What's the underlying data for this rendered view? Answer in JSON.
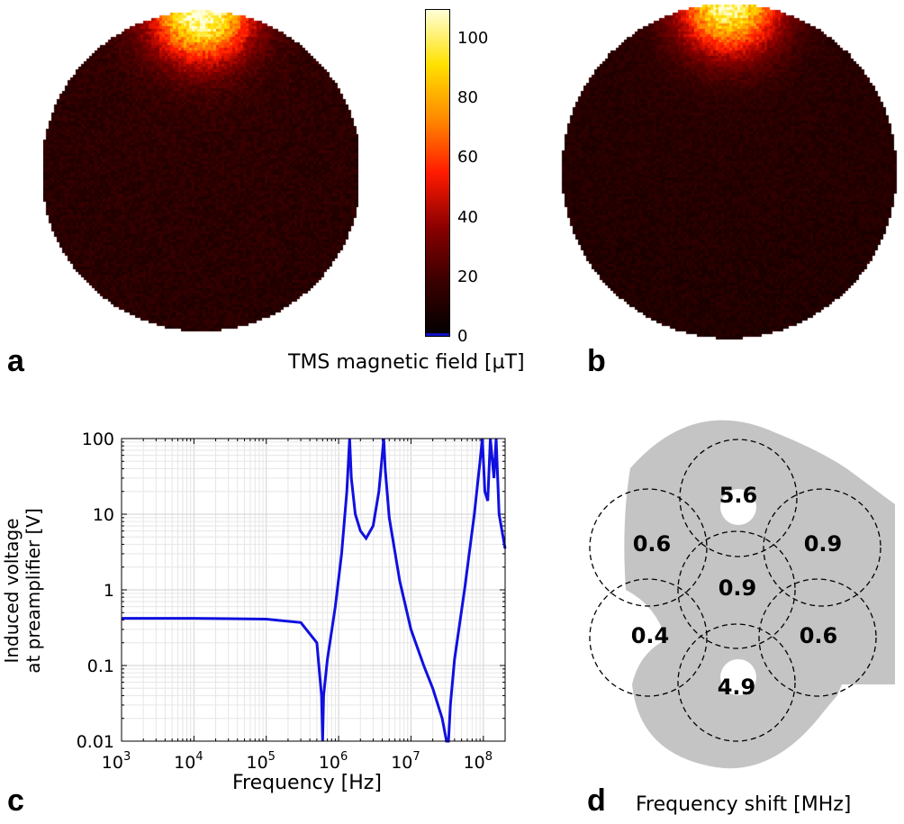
{
  "panels": {
    "a": "a",
    "b": "b",
    "c": "c",
    "d": "d"
  },
  "colorbar": {
    "caption": "TMS magnetic field [µT]",
    "ticks": [
      "100",
      "80",
      "60",
      "40",
      "20",
      "0"
    ],
    "tick_values": [
      100,
      80,
      60,
      40,
      20,
      0
    ],
    "max": 110,
    "colors": [
      "#000000",
      "#3a0000",
      "#8a0000",
      "#ff1a00",
      "#ff8a00",
      "#ffe100",
      "#ffffd8"
    ]
  },
  "heatmaps": {
    "a": {
      "hot_edge": "top",
      "background_field_uT": 12,
      "peak_field_uT": 108
    },
    "b": {
      "hot_edge": "top",
      "background_field_uT": 10,
      "peak_field_uT": 100
    }
  },
  "chart_data": {
    "type": "line",
    "xlabel": "Frequency [Hz]",
    "ylabel": "Induced voltage at preamplifier [V]",
    "ylabel_lines": [
      "Induced voltage",
      "at preamplifier [V]"
    ],
    "xscale": "log",
    "yscale": "log",
    "xlim": [
      1000,
      200000000
    ],
    "ylim": [
      0.01,
      100
    ],
    "grid": true,
    "line_color": "#1010e0",
    "x_ticks": [
      "10",
      "10",
      "10",
      "10",
      "10",
      "10"
    ],
    "x_tick_exponents": [
      "3",
      "4",
      "5",
      "6",
      "7",
      "8"
    ],
    "y_ticks": [
      "100",
      "10",
      "1",
      "0.1",
      "0.01"
    ],
    "series": [
      {
        "x": [
          1000,
          10000,
          100000,
          300000,
          500000,
          580000,
          600000,
          620000,
          700000,
          900000,
          1100000,
          1300000,
          1420000,
          1500000,
          1700000,
          2000000,
          2400000,
          3000000,
          3600000,
          4000000,
          4200000,
          4400000,
          5000000,
          7000000,
          10000000,
          15000000,
          20000000,
          27000000,
          31000000,
          33000000,
          35000000,
          40000000,
          55000000,
          75000000,
          90000000,
          97000000,
          105000000,
          115000000,
          125000000,
          140000000,
          150000000,
          165000000,
          200000000
        ],
        "y": [
          0.42,
          0.42,
          0.41,
          0.37,
          0.2,
          0.04,
          0.01,
          0.04,
          0.12,
          0.6,
          3.0,
          20,
          100,
          30,
          10,
          6,
          4.8,
          7,
          20,
          60,
          100,
          40,
          9,
          1.3,
          0.3,
          0.1,
          0.05,
          0.02,
          0.01,
          0.01,
          0.03,
          0.12,
          1.0,
          10,
          50,
          100,
          20,
          15,
          100,
          30,
          100,
          10,
          3.5
        ]
      }
    ]
  },
  "diagram": {
    "caption": "Frequency shift [MHz]",
    "coil_values": [
      "5.6",
      "0.6",
      "0.9",
      "0.9",
      "0.4",
      "0.6",
      "4.9"
    ],
    "fill_color": "#c4c4c4"
  }
}
